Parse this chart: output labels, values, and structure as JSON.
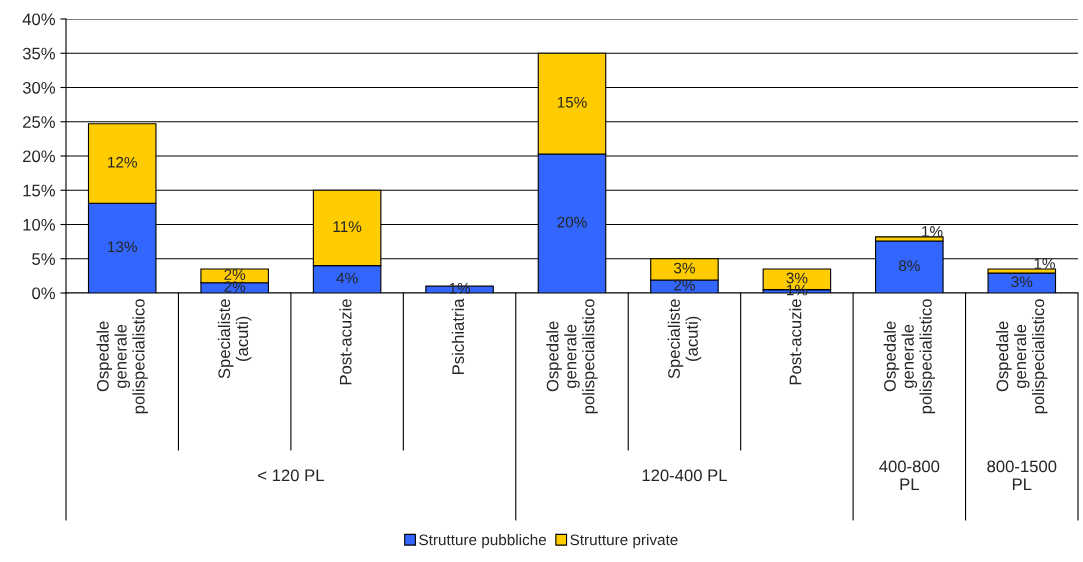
{
  "chart_data": {
    "type": "bar",
    "stacked": true,
    "categories": [
      "Ospedale\ngenerale\npolispecialistico",
      "Specialiste\n(acuti)",
      "Post-acuzie",
      "Psichiatria",
      "Ospedale\ngenerale\npolispecialistico",
      "Specialiste\n(acuti)",
      "Post-acuzie",
      "Ospedale\ngenerale\npolispecialistico",
      "Ospedale\ngenerale\npolispecialistico"
    ],
    "series": [
      {
        "name": "Strutture pubbliche",
        "color": "#3366ff",
        "values": [
          13.1,
          1.5,
          4.0,
          1.0,
          20.3,
          1.9,
          0.5,
          7.6,
          2.9
        ],
        "value_labels": [
          "13%",
          "2%",
          "4%",
          "1%",
          "20%",
          "2%",
          "1%",
          "8%",
          "3%"
        ]
      },
      {
        "name": "Strutture private",
        "color": "#ffcc00",
        "values": [
          11.6,
          2.0,
          11.0,
          null,
          14.7,
          3.1,
          3.0,
          0.6,
          0.6
        ],
        "value_labels": [
          "12%",
          "2%",
          "11%",
          null,
          "15%",
          "3%",
          "3%",
          "1%",
          "1%"
        ]
      }
    ],
    "annotations": [
      "< 120 PL",
      "120-400 PL",
      "400-800\nPL",
      "800-1500\nPL"
    ],
    "ylim": [
      0,
      40
    ],
    "yticks": [
      {
        "value": 0,
        "label": "0%"
      },
      {
        "value": 5,
        "label": "5%"
      },
      {
        "value": 10,
        "label": "10%"
      },
      {
        "value": 15,
        "label": "15%"
      },
      {
        "value": 20,
        "label": "20%"
      },
      {
        "value": 25,
        "label": "25%"
      },
      {
        "value": 30,
        "label": "30%"
      },
      {
        "value": 35,
        "label": "35%"
      },
      {
        "value": 40,
        "label": "40%"
      }
    ],
    "grid": "y",
    "legend": "bottom"
  }
}
